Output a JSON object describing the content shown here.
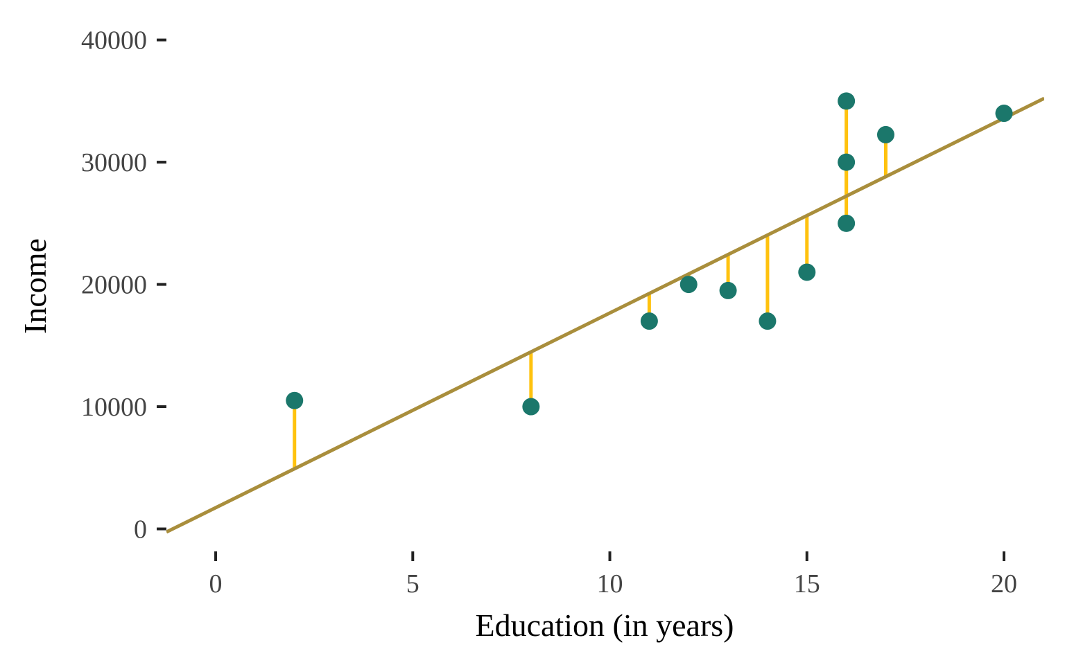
{
  "chart_data": {
    "type": "scatter",
    "x_label": "Education (in years)",
    "y_label": "Income",
    "series": [
      {
        "name": "Income",
        "color": "#1b776b",
        "x": [
          2,
          8,
          11,
          12,
          13,
          14,
          15,
          16,
          16,
          16,
          17,
          20
        ],
        "values": [
          10500,
          10000,
          17000,
          20000,
          19500,
          17000,
          21000,
          35000,
          30000,
          25000,
          32250,
          34000
        ]
      }
    ],
    "trend_line": {
      "intercept": 1735,
      "slope": 1593,
      "color": "#a98e3c",
      "residual_color": "#ffc20e"
    },
    "xlim": [
      -1.25,
      21.02
    ],
    "ylim": [
      -1500,
      41000
    ],
    "xticks": [
      0,
      5,
      10,
      15,
      20
    ],
    "yticks": [
      0,
      10000,
      20000,
      30000,
      40000
    ],
    "grid": false
  }
}
